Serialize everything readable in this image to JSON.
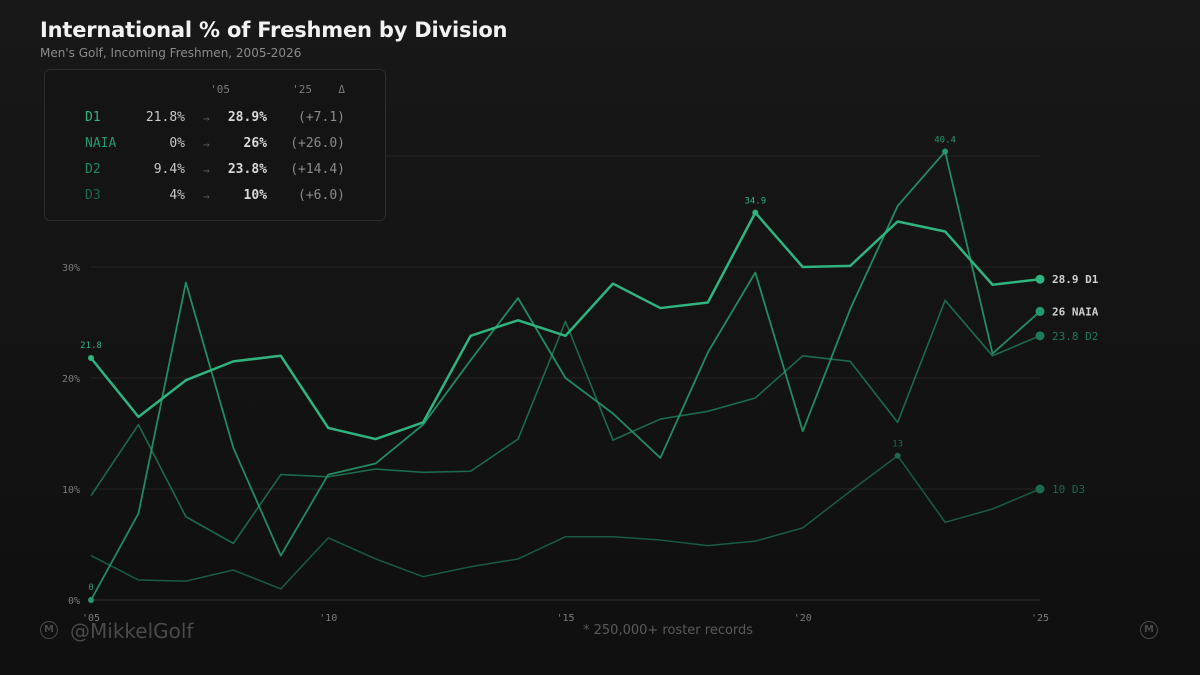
{
  "title": "International % of Freshmen by Division",
  "subtitle": "Men's Golf, Incoming Freshmen, 2005-2026",
  "footer": {
    "handle": "@MikkelGolf",
    "note": "* 250,000+ roster records",
    "logo_letter": "M"
  },
  "summary_table": {
    "headers": {
      "start": "'05",
      "end": "'25",
      "delta": "Δ"
    },
    "arrow": "→",
    "rows": [
      {
        "division": "D1",
        "start": "21.8%",
        "end": "28.9%",
        "delta": "(+7.1)"
      },
      {
        "division": "NAIA",
        "start": "0%",
        "end": "26%",
        "delta": "(+26.0)"
      },
      {
        "division": "D2",
        "start": "9.4%",
        "end": "23.8%",
        "delta": "(+14.4)"
      },
      {
        "division": "D3",
        "start": "4%",
        "end": "10%",
        "delta": "(+6.0)"
      }
    ]
  },
  "colors": {
    "D1": "#2fb47f",
    "NAIA": "#25996b",
    "D2": "#1e7a57",
    "D3": "#1a6a4b",
    "grid": "#262626",
    "axis": "#333333",
    "tick": "#7a7a7a"
  },
  "chart_data": {
    "type": "line",
    "title": "International % of Freshmen by Division",
    "subtitle": "Men's Golf, Incoming Freshmen, 2005-2026",
    "xlabel": "",
    "ylabel": "",
    "x": [
      2005,
      2006,
      2007,
      2008,
      2009,
      2010,
      2011,
      2012,
      2013,
      2014,
      2015,
      2016,
      2017,
      2018,
      2019,
      2020,
      2021,
      2022,
      2023,
      2024,
      2025
    ],
    "xlim": [
      2005,
      2025
    ],
    "ylim": [
      0,
      40
    ],
    "x_ticks": [
      2005,
      2010,
      2015,
      2020,
      2025
    ],
    "x_tick_labels": [
      "'05",
      "'10",
      "'15",
      "'20",
      "'25"
    ],
    "y_ticks": [
      0,
      10,
      20,
      30
    ],
    "y_tick_labels": [
      "0%",
      "10%",
      "20%",
      "30%"
    ],
    "series": [
      {
        "name": "D1",
        "values": [
          21.8,
          16.5,
          19.8,
          21.5,
          22.0,
          15.5,
          14.5,
          16.0,
          23.8,
          25.2,
          23.8,
          28.5,
          26.3,
          26.8,
          34.9,
          30.0,
          30.1,
          34.1,
          33.2,
          28.4,
          28.9
        ],
        "end_label": "28.9 D1",
        "peak_label": "34.9",
        "start_label": "21.8"
      },
      {
        "name": "NAIA",
        "values": [
          0,
          7.8,
          28.6,
          13.7,
          4.0,
          11.3,
          12.3,
          15.8,
          21.6,
          27.2,
          20.0,
          16.8,
          12.8,
          22.3,
          29.5,
          15.2,
          26.2,
          35.5,
          40.4,
          22.2,
          26.0
        ],
        "end_label": "26 NAIA",
        "peak_label": "40.4",
        "start_label": "0"
      },
      {
        "name": "D2",
        "values": [
          9.4,
          15.8,
          7.5,
          5.1,
          11.3,
          11.1,
          11.8,
          11.5,
          11.6,
          14.5,
          25.1,
          14.4,
          16.3,
          17.0,
          18.2,
          22.0,
          21.5,
          16.0,
          27.0,
          22.0,
          23.8
        ],
        "end_label": "23.8 D2"
      },
      {
        "name": "D3",
        "values": [
          4.0,
          1.8,
          1.7,
          2.7,
          1.0,
          5.6,
          3.7,
          2.1,
          3.0,
          3.7,
          5.7,
          5.7,
          5.4,
          4.9,
          5.3,
          6.5,
          9.8,
          13.0,
          7.0,
          8.2,
          10.0
        ],
        "end_label": "10 D3",
        "peak_label": "13"
      }
    ],
    "legend": "direct labels at line ends",
    "grid": true
  }
}
